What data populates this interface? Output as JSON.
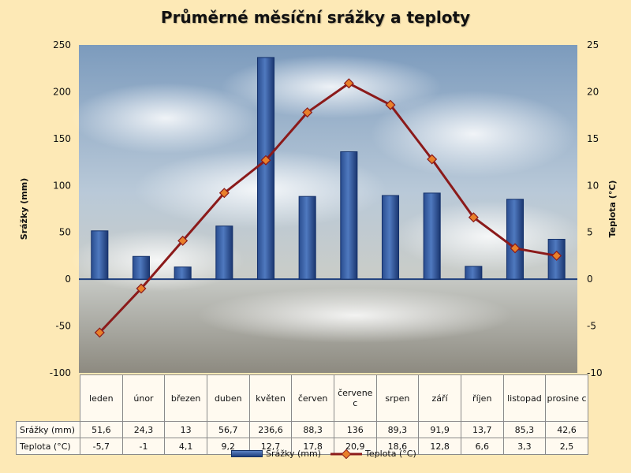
{
  "chart_data": {
    "type": "bar",
    "title": "Průměrné měsíční srážky a teploty",
    "categories": [
      "leden",
      "únor",
      "březen",
      "duben",
      "květen",
      "červen",
      "červenec",
      "srpen",
      "září",
      "říjen",
      "listopad",
      "prosinec"
    ],
    "categories_display": [
      "leden",
      "únor",
      "březen",
      "duben",
      "květen",
      "červen",
      "červene c",
      "srpen",
      "září",
      "říjen",
      "listopad",
      "prosine c"
    ],
    "series": [
      {
        "name": "Srážky (mm)",
        "type": "bar",
        "axis": "left",
        "values": [
          51.6,
          24.3,
          13,
          56.7,
          236.6,
          88.3,
          136,
          89.3,
          91.9,
          13.7,
          85.3,
          42.6
        ],
        "labels": [
          "51,6",
          "24,3",
          "13",
          "56,7",
          "236,6",
          "88,3",
          "136",
          "89,3",
          "91,9",
          "13,7",
          "85,3",
          "42,6"
        ],
        "color": "#1f3f7d"
      },
      {
        "name": "Teplota (°C)",
        "type": "line",
        "axis": "right",
        "values": [
          -5.7,
          -1,
          4.1,
          9.2,
          12.7,
          17.8,
          20.9,
          18.6,
          12.8,
          6.6,
          3.3,
          2.5
        ],
        "labels": [
          "-5,7",
          "-1",
          "4,1",
          "9,2",
          "12,7",
          "17,8",
          "20,9",
          "18,6",
          "12,8",
          "6,6",
          "3,3",
          "2,5"
        ],
        "color": "#8b1a1a",
        "marker_color": "#e8802a"
      }
    ],
    "ylabel_left": "Srážky (mm)",
    "ylabel_right": "Teplota (°C)",
    "ylim_left": [
      -100,
      250
    ],
    "ylim_right": [
      -10,
      25
    ],
    "yticks_left": [
      "250",
      "200",
      "150",
      "100",
      "50",
      "0",
      "-50",
      "-100"
    ],
    "yticks_right": [
      "25",
      "20",
      "15",
      "10",
      "5",
      "0",
      "-5",
      "-10"
    ],
    "grid": false,
    "legend": "bottom",
    "data_table": true
  }
}
